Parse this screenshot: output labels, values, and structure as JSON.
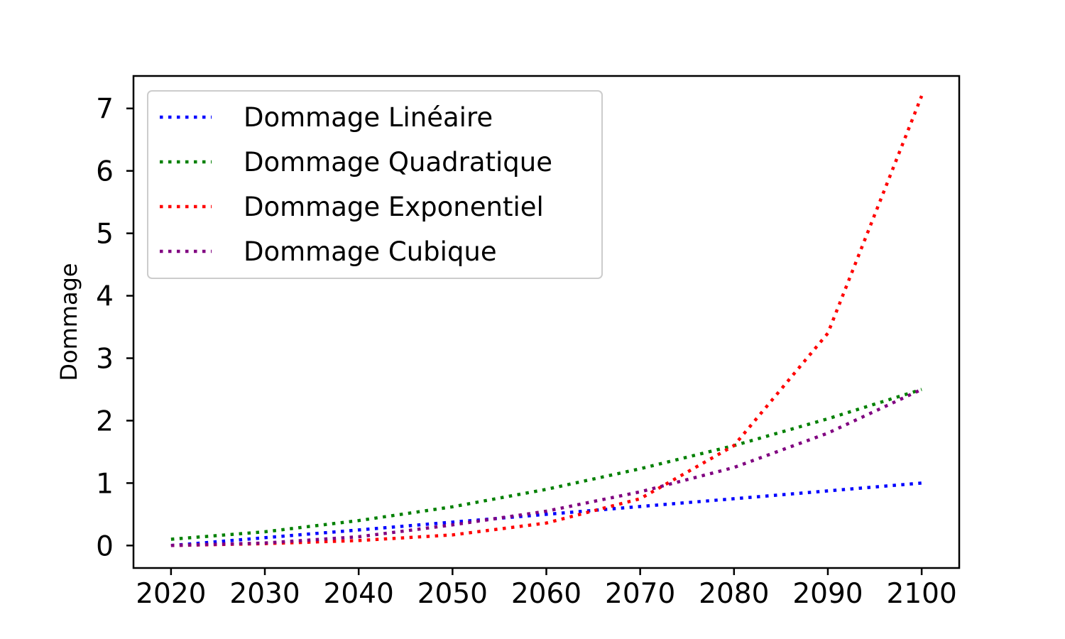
{
  "chart_data": {
    "type": "line",
    "title": "",
    "xlabel": "",
    "ylabel": "Dommage",
    "xlim": [
      2016,
      2104
    ],
    "ylim": [
      -0.36,
      7.52
    ],
    "x_ticks": [
      2020,
      2030,
      2040,
      2050,
      2060,
      2070,
      2080,
      2090,
      2100
    ],
    "y_ticks": [
      0,
      1,
      2,
      3,
      4,
      5,
      6,
      7
    ],
    "grid": false,
    "legend_position": "top-left",
    "line_style": "dotted",
    "x": [
      2020,
      2030,
      2040,
      2050,
      2060,
      2070,
      2080,
      2090,
      2100
    ],
    "series": [
      {
        "name": "Dommage Linéaire",
        "color": "#0000ff",
        "values": [
          0.0,
          0.125,
          0.25,
          0.375,
          0.5,
          0.625,
          0.75,
          0.875,
          1.0
        ]
      },
      {
        "name": "Dommage Quadratique",
        "color": "#008000",
        "values": [
          0.1,
          0.22,
          0.4,
          0.62,
          0.9,
          1.23,
          1.6,
          2.03,
          2.5
        ]
      },
      {
        "name": "Dommage Exponentiel",
        "color": "#ff0000",
        "values": [
          0.0,
          0.03,
          0.08,
          0.17,
          0.36,
          0.75,
          1.6,
          3.4,
          7.2
        ]
      },
      {
        "name": "Dommage Cubique",
        "color": "#800080",
        "values": [
          0.0,
          0.04,
          0.14,
          0.33,
          0.55,
          0.86,
          1.25,
          1.8,
          2.5
        ]
      }
    ]
  }
}
